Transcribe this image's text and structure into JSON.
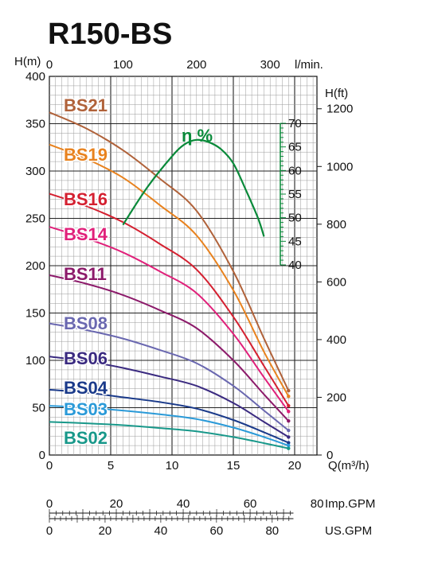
{
  "chart_data": {
    "type": "line",
    "title": "R150-BS",
    "x_axis": {
      "label": "Q(m³/h)",
      "range": [
        0,
        20
      ],
      "ticks": [
        0,
        5,
        10,
        15,
        20
      ]
    },
    "y_axis": {
      "label": "H(m)",
      "range": [
        0,
        400
      ],
      "ticks": [
        0,
        50,
        100,
        150,
        200,
        250,
        300,
        350,
        400
      ]
    },
    "top_axis": {
      "label": "l/min.",
      "ticks": [
        0,
        100,
        200,
        300
      ]
    },
    "right_axis": {
      "label": "H(ft)",
      "ticks": [
        0,
        200,
        400,
        600,
        800,
        1000,
        1200
      ]
    },
    "efficiency_axis": {
      "label": "η %",
      "ticks": [
        40,
        45,
        50,
        55,
        60,
        65,
        70
      ],
      "color": "#0a8a3a"
    },
    "imp_gpm_axis": {
      "label": "Imp.GPM",
      "ticks": [
        0,
        20,
        40,
        60,
        80
      ]
    },
    "us_gpm_axis": {
      "label": "US.GPM",
      "ticks": [
        0,
        20,
        40,
        60,
        80
      ]
    },
    "grid": true,
    "series": [
      {
        "name": "BS21",
        "color": "#b0623a",
        "points": [
          [
            0,
            362
          ],
          [
            3,
            345
          ],
          [
            6,
            322
          ],
          [
            9,
            292
          ],
          [
            12,
            258
          ],
          [
            15,
            194
          ],
          [
            17.5,
            123
          ],
          [
            19.5,
            68
          ]
        ]
      },
      {
        "name": "BS19",
        "color": "#e8821e",
        "points": [
          [
            0,
            328
          ],
          [
            3,
            313
          ],
          [
            6,
            293
          ],
          [
            9,
            264
          ],
          [
            12,
            232
          ],
          [
            15,
            174
          ],
          [
            17.5,
            109
          ],
          [
            19.5,
            62
          ]
        ]
      },
      {
        "name": "BS16",
        "color": "#d42030",
        "points": [
          [
            0,
            276
          ],
          [
            3,
            263
          ],
          [
            6,
            246
          ],
          [
            9,
            223
          ],
          [
            12,
            196
          ],
          [
            15,
            146
          ],
          [
            17.5,
            94
          ],
          [
            19.5,
            52
          ]
        ]
      },
      {
        "name": "BS14",
        "color": "#e0207a",
        "points": [
          [
            0,
            241
          ],
          [
            3,
            229
          ],
          [
            6,
            214
          ],
          [
            9,
            194
          ],
          [
            12,
            171
          ],
          [
            15,
            128
          ],
          [
            17.5,
            82
          ],
          [
            19.5,
            46
          ]
        ]
      },
      {
        "name": "BS11",
        "color": "#8c1a6a",
        "points": [
          [
            0,
            190
          ],
          [
            3,
            181
          ],
          [
            6,
            169
          ],
          [
            9,
            153
          ],
          [
            12,
            134
          ],
          [
            15,
            100
          ],
          [
            17.5,
            64
          ],
          [
            19.5,
            36
          ]
        ]
      },
      {
        "name": "BS08",
        "color": "#6a68b0",
        "points": [
          [
            0,
            139
          ],
          [
            3,
            132
          ],
          [
            6,
            123
          ],
          [
            9,
            111
          ],
          [
            12,
            97
          ],
          [
            15,
            73
          ],
          [
            17.5,
            47
          ],
          [
            19.5,
            26
          ]
        ]
      },
      {
        "name": "BS06",
        "color": "#3a2a80",
        "points": [
          [
            0,
            104
          ],
          [
            3,
            99
          ],
          [
            6,
            92
          ],
          [
            9,
            83
          ],
          [
            12,
            73
          ],
          [
            15,
            55
          ],
          [
            17.5,
            35
          ],
          [
            19.5,
            19
          ]
        ]
      },
      {
        "name": "BS04",
        "color": "#1a3a8a",
        "points": [
          [
            0,
            69
          ],
          [
            3,
            66
          ],
          [
            6,
            61
          ],
          [
            9,
            56
          ],
          [
            12,
            49
          ],
          [
            15,
            37
          ],
          [
            17.5,
            24
          ],
          [
            19.5,
            13
          ]
        ]
      },
      {
        "name": "BS03",
        "color": "#2a9ad8",
        "points": [
          [
            0,
            52
          ],
          [
            3,
            50
          ],
          [
            6,
            47
          ],
          [
            9,
            43
          ],
          [
            12,
            38
          ],
          [
            15,
            29
          ],
          [
            17.5,
            19
          ],
          [
            19.5,
            10
          ]
        ]
      },
      {
        "name": "BS02",
        "color": "#18988a",
        "points": [
          [
            0,
            35
          ],
          [
            3,
            33.5
          ],
          [
            6,
            31.5
          ],
          [
            9,
            28.5
          ],
          [
            12,
            25
          ],
          [
            15,
            19
          ],
          [
            17.5,
            12.5
          ],
          [
            19.5,
            7
          ]
        ]
      }
    ],
    "efficiency_curve": {
      "color": "#0a8a3a",
      "points": [
        [
          6,
          48.5
        ],
        [
          8,
          56.5
        ],
        [
          10,
          63
        ],
        [
          11,
          65.5
        ],
        [
          12,
          66.5
        ],
        [
          13,
          66
        ],
        [
          14,
          64.5
        ],
        [
          15,
          61.5
        ],
        [
          16,
          56
        ],
        [
          17,
          50
        ],
        [
          17.5,
          46
        ]
      ]
    }
  }
}
